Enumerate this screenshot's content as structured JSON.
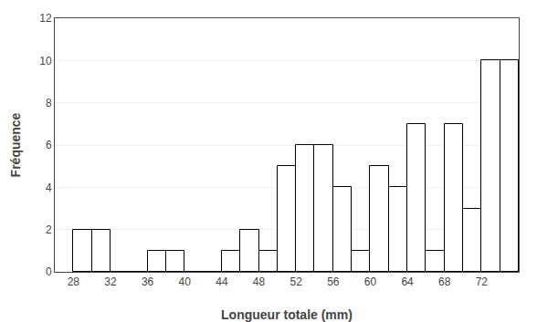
{
  "chart_data": {
    "type": "histogram",
    "xlabel": "Longueur totale (mm)",
    "ylabel": "Fréquence",
    "bins": [
      28,
      30,
      32,
      34,
      36,
      38,
      40,
      42,
      44,
      46,
      48,
      50,
      52,
      54,
      56,
      58,
      60,
      62,
      64,
      66,
      68,
      70,
      72,
      74,
      76
    ],
    "values": [
      2,
      2,
      0,
      0,
      1,
      1,
      0,
      0,
      1,
      2,
      1,
      5,
      6,
      6,
      4,
      1,
      5,
      4,
      7,
      1,
      7,
      3,
      10,
      10
    ],
    "color": "#ffffff",
    "xlim": [
      26,
      76
    ],
    "xticks": [
      28,
      32,
      36,
      40,
      44,
      48,
      52,
      56,
      60,
      64,
      68,
      72
    ],
    "ylim": [
      0,
      12
    ],
    "yticks": [
      0,
      2,
      4,
      6,
      8,
      10,
      12
    ],
    "grid": "y"
  }
}
